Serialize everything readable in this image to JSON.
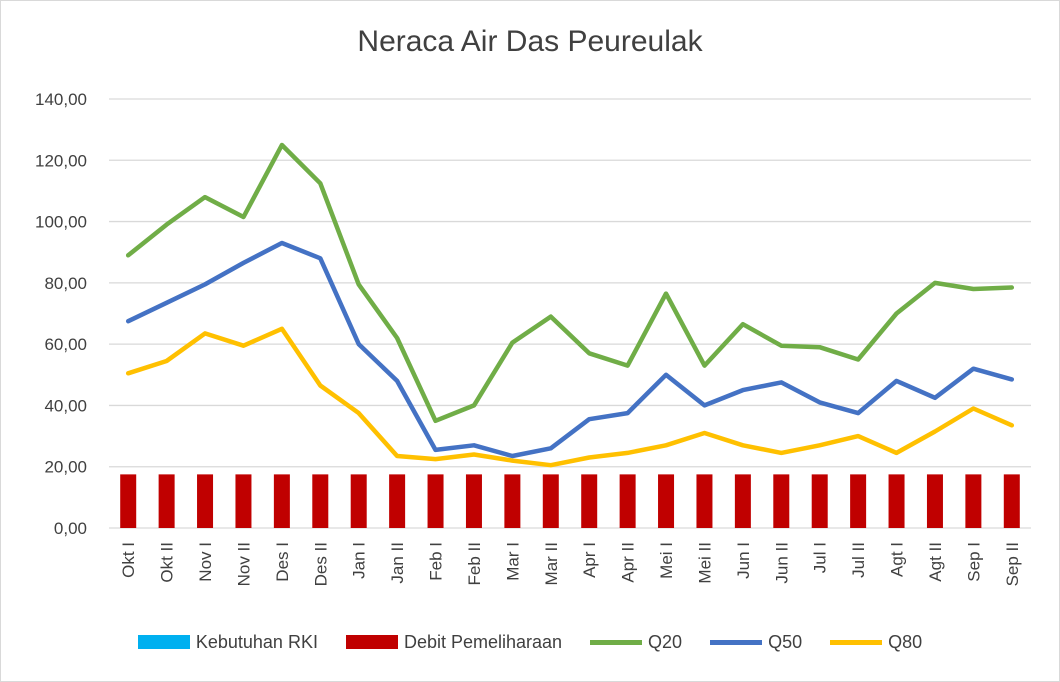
{
  "chart_data": {
    "type": "line",
    "title": "Neraca Air Das Peureulak",
    "categories": [
      "Okt I",
      "Okt II",
      "Nov I",
      "Nov II",
      "Des I",
      "Des II",
      "Jan I",
      "Jan II",
      "Feb I",
      "Feb II",
      "Mar I",
      "Mar II",
      "Apr I",
      "Apr II",
      "Mei I",
      "Mei II",
      "Jun I",
      "Jun II",
      "Jul I",
      "Jul II",
      "Agt I",
      "Agt II",
      "Sep I",
      "Sep II"
    ],
    "ylim": [
      0,
      140
    ],
    "yticks": [
      "0,00",
      "20,00",
      "40,00",
      "60,00",
      "80,00",
      "100,00",
      "120,00",
      "140,00"
    ],
    "grid": true,
    "legend_position": "bottom",
    "series": [
      {
        "name": "Kebutuhan RKI",
        "kind": "bar",
        "color": "#00b0f0",
        "values": [
          0,
          0,
          0,
          0,
          0,
          0,
          0,
          0,
          0,
          0,
          0,
          0,
          0,
          0,
          0,
          0,
          0,
          0,
          0,
          0,
          0,
          0,
          0,
          0
        ]
      },
      {
        "name": "Debit Pemeliharaan",
        "kind": "bar",
        "color": "#c00000",
        "values": [
          17.5,
          17.5,
          17.5,
          17.5,
          17.5,
          17.5,
          17.5,
          17.5,
          17.5,
          17.5,
          17.5,
          17.5,
          17.5,
          17.5,
          17.5,
          17.5,
          17.5,
          17.5,
          17.5,
          17.5,
          17.5,
          17.5,
          17.5,
          17.5
        ]
      },
      {
        "name": "Q20",
        "kind": "line",
        "color": "#70ad47",
        "values": [
          89,
          99,
          108,
          101.5,
          125,
          112.5,
          79.5,
          62,
          35,
          40,
          60.5,
          69,
          57,
          53,
          76.5,
          53,
          66.5,
          59.5,
          59,
          55,
          70,
          80,
          78,
          78.5
        ]
      },
      {
        "name": "Q50",
        "kind": "line",
        "color": "#4472c4",
        "values": [
          67.5,
          73.5,
          79.5,
          86.5,
          93,
          88,
          60,
          48,
          25.5,
          27,
          23.5,
          26,
          35.5,
          37.5,
          50,
          40,
          45,
          47.5,
          41,
          37.5,
          48,
          42.5,
          52,
          48.5
        ]
      },
      {
        "name": "Q80",
        "kind": "line",
        "color": "#ffc000",
        "values": [
          50.5,
          54.5,
          63.5,
          59.5,
          65,
          46.5,
          37.5,
          23.5,
          22.5,
          24,
          22,
          20.5,
          23,
          24.5,
          27,
          31,
          27,
          24.5,
          27,
          30,
          24.5,
          31.5,
          39,
          33.5
        ]
      }
    ]
  }
}
